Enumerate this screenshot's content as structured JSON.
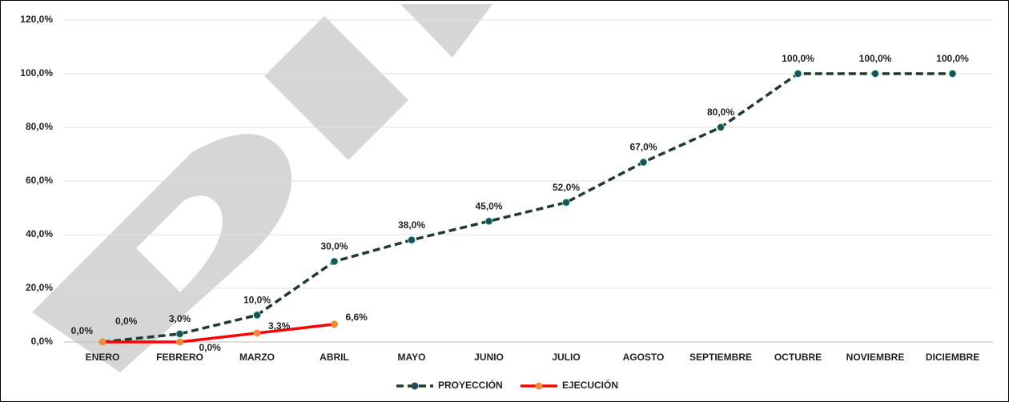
{
  "chart_data": {
    "type": "line",
    "categories": [
      "ENERO",
      "FEBRERO",
      "MARZO",
      "ABRIL",
      "MAYO",
      "JUNIO",
      "JULIO",
      "AGOSTO",
      "SEPTIEMBRE",
      "OCTUBRE",
      "NOVIEMBRE",
      "DICIEMBRE"
    ],
    "series": [
      {
        "name": "PROYECCIÓN",
        "color": "#1e3b2c",
        "marker_color": "#1f4e5f",
        "dashed": true,
        "values": [
          0,
          3,
          10,
          30,
          38,
          45,
          52,
          67,
          80,
          100,
          100,
          100
        ],
        "value_labels": [
          "0,0%",
          "3,0%",
          "10,0%",
          "30,0%",
          "38,0%",
          "45,0%",
          "52,0%",
          "67,0%",
          "80,0%",
          "100,0%",
          "100,0%",
          "100,0%"
        ]
      },
      {
        "name": "EJECUCIÓN",
        "color": "#ff0000",
        "marker_color": "#f08a3c",
        "dashed": false,
        "values": [
          0,
          0,
          3.3,
          6.6,
          null,
          null,
          null,
          null,
          null,
          null,
          null,
          null
        ],
        "value_labels": [
          "0,0%",
          "0,0%",
          "3,3%",
          "6,6%",
          null,
          null,
          null,
          null,
          null,
          null,
          null,
          null
        ]
      }
    ],
    "ylim": [
      0,
      120
    ],
    "yticks": [
      {
        "value": 0,
        "label": "0,0%"
      },
      {
        "value": 20,
        "label": "20,0%"
      },
      {
        "value": 40,
        "label": "40,0%"
      },
      {
        "value": 60,
        "label": "60,0%"
      },
      {
        "value": 80,
        "label": "80,0%"
      },
      {
        "value": 100,
        "label": "100,0%"
      },
      {
        "value": 120,
        "label": "120,0%"
      }
    ],
    "grid": true,
    "legend": "bottom"
  }
}
